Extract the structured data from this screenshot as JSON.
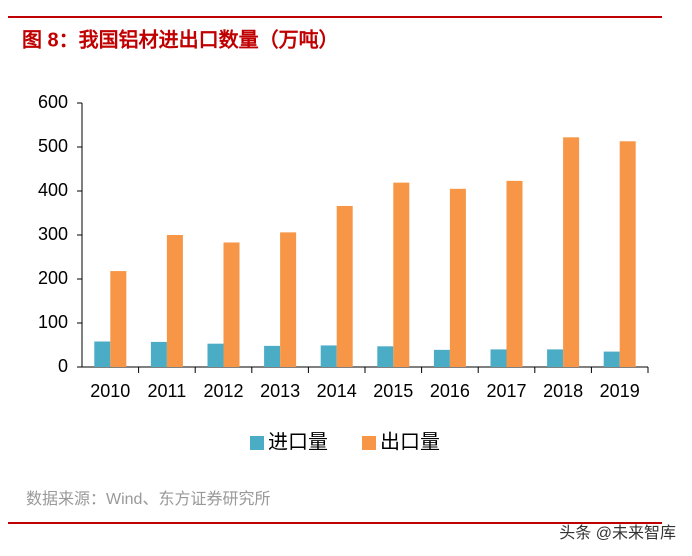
{
  "chart_data": {
    "type": "bar",
    "title": "图 8：我国铝材进出口数量（万吨）",
    "categories": [
      "2010",
      "2011",
      "2012",
      "2013",
      "2014",
      "2015",
      "2016",
      "2017",
      "2018",
      "2019"
    ],
    "series": [
      {
        "name": "进口量",
        "color": "#4bacc6",
        "values": [
          58,
          57,
          53,
          48,
          49,
          47,
          39,
          40,
          40,
          35
        ]
      },
      {
        "name": "出口量",
        "color": "#f79646",
        "values": [
          218,
          300,
          283,
          306,
          366,
          419,
          405,
          423,
          522,
          513
        ]
      }
    ],
    "ylim": [
      0,
      600
    ],
    "yticks": [
      0,
      100,
      200,
      300,
      400,
      500,
      600
    ],
    "grid": false,
    "legend": "bottom",
    "source": "数据来源：Wind、东方证券研究所",
    "watermark": "头条 @未来智库"
  }
}
